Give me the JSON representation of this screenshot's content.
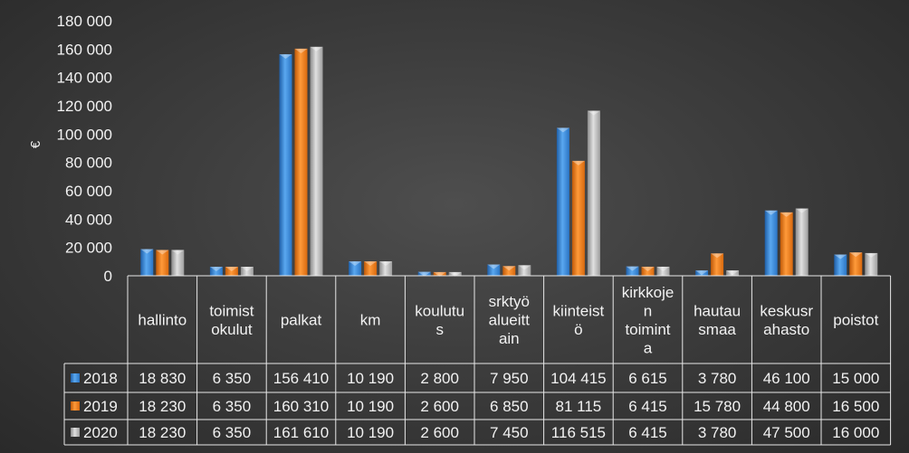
{
  "chart_data": {
    "type": "bar",
    "ylabel": "€",
    "ylim": [
      0,
      180000
    ],
    "yticks": [
      "0",
      "20 000",
      "40 000",
      "60 000",
      "80 000",
      "100 000",
      "120 000",
      "140 000",
      "160 000",
      "180 000"
    ],
    "grid": false,
    "legend": "data-table",
    "categories": [
      "hallinto",
      "toimistokulut",
      "palkat",
      "km",
      "koulutus",
      "srktyö alueittain",
      "kiinteistö",
      "kirkkojen toiminta",
      "hautausmaa",
      "keskusrahasto",
      "poistot"
    ],
    "category_lines": [
      [
        "hallinto"
      ],
      [
        "toimist",
        "okulut"
      ],
      [
        "palkat"
      ],
      [
        "km"
      ],
      [
        "koulutu",
        "s"
      ],
      [
        "srktyö",
        "alueitt",
        "ain"
      ],
      [
        "kiinteist",
        "ö"
      ],
      [
        "kirkkoje",
        "n",
        "toimint",
        "a"
      ],
      [
        "hautau",
        "smaa"
      ],
      [
        "keskusr",
        "ahasto"
      ],
      [
        "poistot"
      ]
    ],
    "series": [
      {
        "name": "2018",
        "color": "#3d8fe0",
        "values": [
          18830,
          6350,
          156410,
          10190,
          2800,
          7950,
          104415,
          6615,
          3780,
          46100,
          15000
        ],
        "labels": [
          "18 830",
          "6 350",
          "156 410",
          "10 190",
          "2 800",
          "7 950",
          "104 415",
          "6 615",
          "3 780",
          "46 100",
          "15 000"
        ]
      },
      {
        "name": "2019",
        "color": "#f07f1a",
        "values": [
          18230,
          6350,
          160310,
          10190,
          2600,
          6850,
          81115,
          6415,
          15780,
          44800,
          16500
        ],
        "labels": [
          "18 230",
          "6 350",
          "160 310",
          "10 190",
          "2 600",
          "6 850",
          "81 115",
          "6 415",
          "15 780",
          "44 800",
          "16 500"
        ]
      },
      {
        "name": "2020",
        "color": "#b5b5b5",
        "values": [
          18230,
          6350,
          161610,
          10190,
          2600,
          7450,
          116515,
          6415,
          3780,
          47500,
          16000
        ],
        "labels": [
          "18 230",
          "6 350",
          "161 610",
          "10 190",
          "2 600",
          "7 450",
          "116 515",
          "6 415",
          "3 780",
          "47 500",
          "16 000"
        ]
      }
    ]
  }
}
